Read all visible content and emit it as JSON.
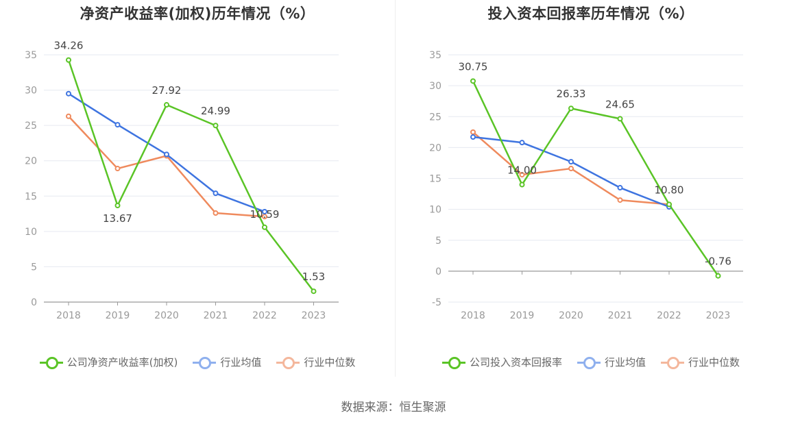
{
  "chart_data": [
    {
      "type": "line",
      "title": "净资产收益率(加权)历年情况（%）",
      "categories": [
        "2018",
        "2019",
        "2020",
        "2021",
        "2022",
        "2023"
      ],
      "ylim": [
        0,
        35
      ],
      "yticks": [
        0,
        5,
        10,
        15,
        20,
        25,
        30,
        35
      ],
      "grid": true,
      "legend_position": "bottom",
      "series": [
        {
          "name": "公司净资产收益率(加权)",
          "color": "#5ac426",
          "values": [
            34.26,
            13.67,
            27.92,
            24.99,
            10.59,
            1.53
          ],
          "labels": [
            "34.26",
            "13.67",
            "27.92",
            "24.99",
            "10.59",
            "1.53"
          ]
        },
        {
          "name": "行业均值",
          "color": "#3e74e0",
          "values": [
            29.5,
            25.1,
            20.9,
            15.4,
            12.8,
            null
          ]
        },
        {
          "name": "行业中位数",
          "color": "#ef8a5d",
          "values": [
            26.3,
            18.9,
            20.7,
            12.6,
            12.1,
            null
          ]
        }
      ]
    },
    {
      "type": "line",
      "title": "投入资本回报率历年情况（%）",
      "categories": [
        "2018",
        "2019",
        "2020",
        "2021",
        "2022",
        "2023"
      ],
      "ylim": [
        -5,
        35
      ],
      "yticks": [
        -5,
        0,
        5,
        10,
        15,
        20,
        25,
        30,
        35
      ],
      "grid": true,
      "legend_position": "bottom",
      "series": [
        {
          "name": "公司投入资本回报率",
          "color": "#5ac426",
          "values": [
            30.75,
            14.0,
            26.33,
            24.65,
            10.8,
            -0.76
          ],
          "labels": [
            "30.75",
            "14.00",
            "26.33",
            "24.65",
            "10.80",
            "-0.76"
          ]
        },
        {
          "name": "行业均值",
          "color": "#3e74e0",
          "values": [
            21.7,
            20.8,
            17.7,
            13.5,
            10.4,
            null
          ]
        },
        {
          "name": "行业中位数",
          "color": "#ef8a5d",
          "values": [
            22.5,
            15.6,
            16.6,
            11.5,
            10.8,
            null
          ]
        }
      ]
    }
  ],
  "legend_colors": {
    "company": "#5ac426",
    "mean": "#8fb0ee",
    "median": "#f4b79c"
  },
  "source": "数据来源：恒生聚源"
}
